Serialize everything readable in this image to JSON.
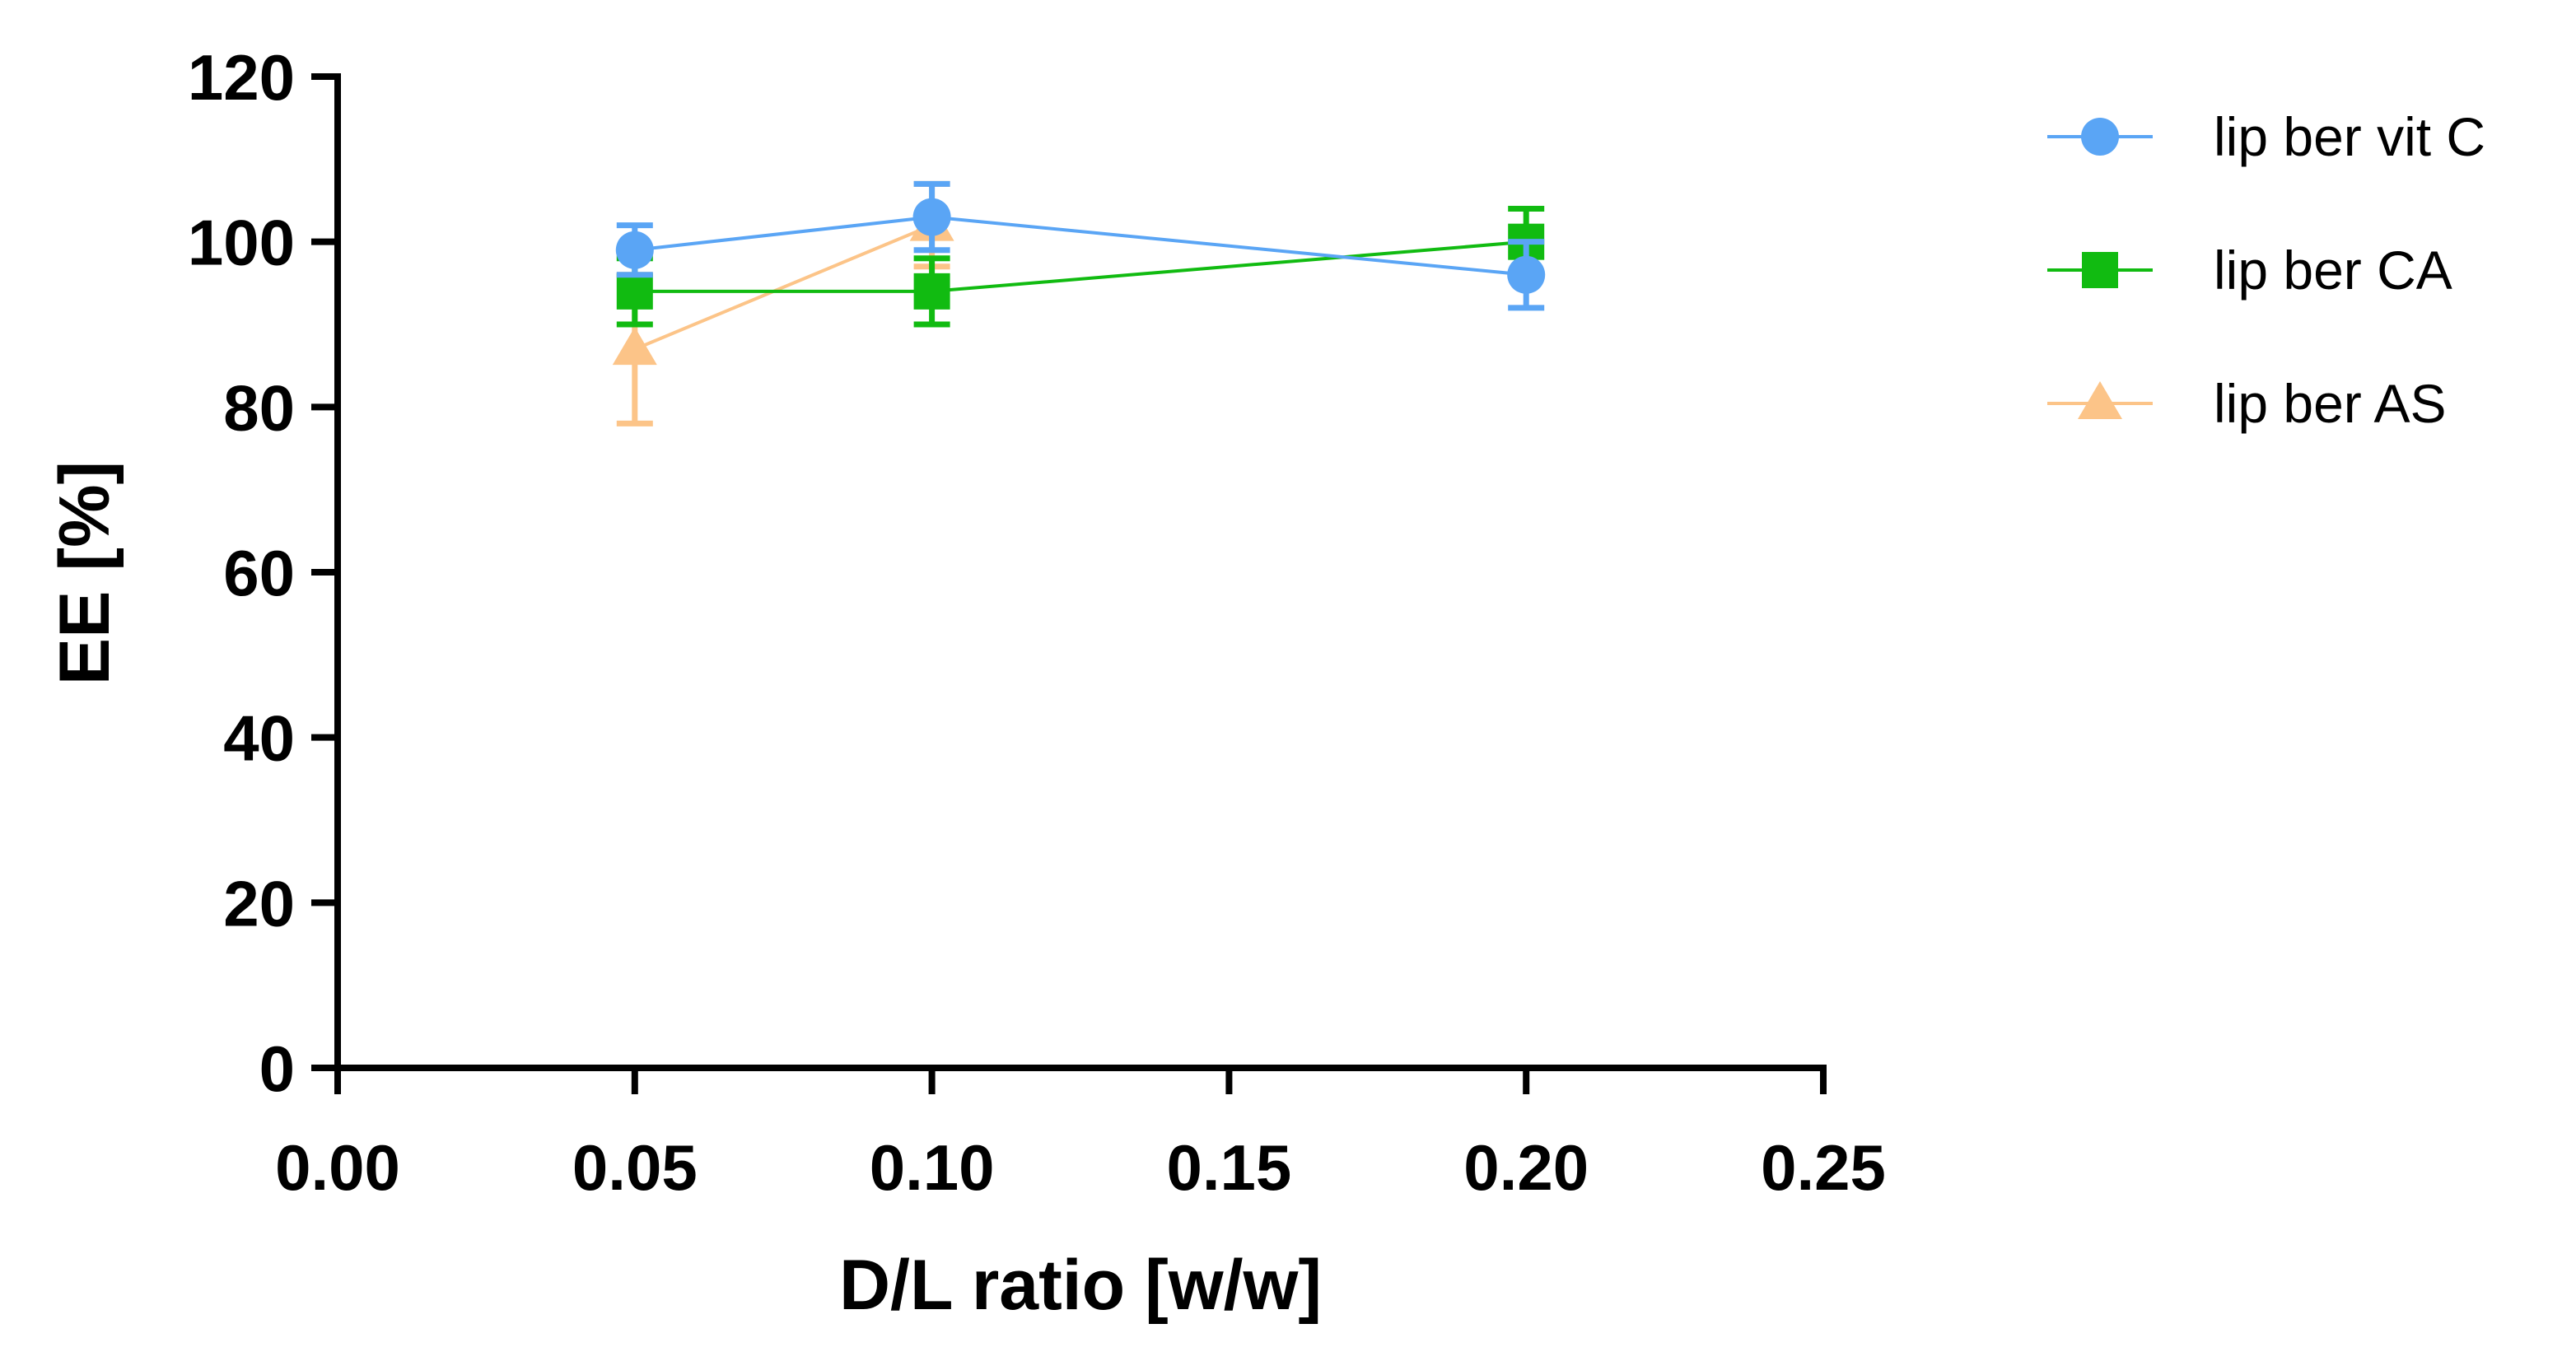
{
  "chart_data": {
    "type": "line",
    "title": "",
    "xlabel": "D/L ratio [w/w]",
    "ylabel": "EE [%]",
    "xlim": [
      0.0,
      0.25
    ],
    "ylim": [
      0,
      120
    ],
    "xticks": [
      0.0,
      0.05,
      0.1,
      0.15,
      0.2,
      0.25
    ],
    "xtick_labels": [
      "0.00",
      "0.05",
      "0.10",
      "0.15",
      "0.20",
      "0.25"
    ],
    "yticks": [
      0,
      20,
      40,
      60,
      80,
      100,
      120
    ],
    "ytick_labels": [
      "0",
      "20",
      "40",
      "60",
      "80",
      "100",
      "120"
    ],
    "grid": false,
    "legend_position": "top-right, outside plot",
    "series": [
      {
        "name": "lip ber vit C",
        "marker": "circle",
        "color": "#5aa5f5",
        "x": [
          0.05,
          0.1,
          0.2
        ],
        "y": [
          99,
          103,
          96
        ],
        "err": [
          3,
          4,
          4
        ]
      },
      {
        "name": "lip ber CA",
        "marker": "square",
        "color": "#11bb11",
        "x": [
          0.05,
          0.1,
          0.2
        ],
        "y": [
          94,
          94,
          100
        ],
        "err": [
          4,
          4,
          4
        ]
      },
      {
        "name": "lip ber AS",
        "marker": "triangle",
        "color": "#fcc488",
        "x": [
          0.05,
          0.1
        ],
        "y": [
          87,
          102
        ],
        "err": [
          9,
          5
        ]
      }
    ]
  }
}
